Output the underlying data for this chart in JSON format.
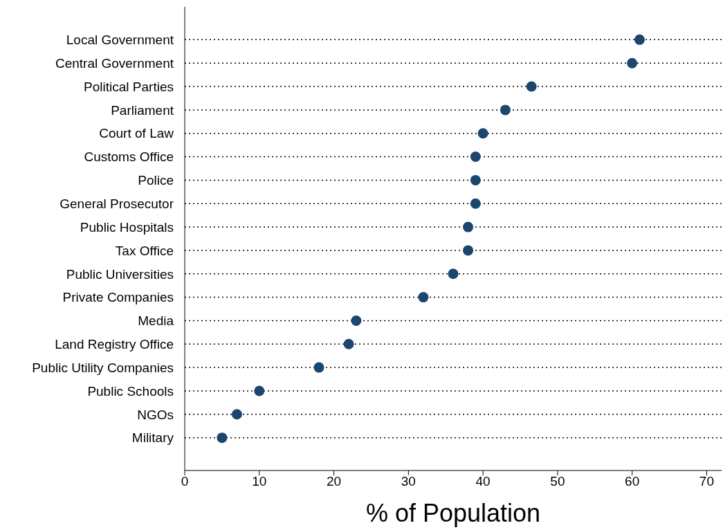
{
  "chart_data": {
    "type": "scatter",
    "orientation": "horizontal",
    "xlabel": "% of Population",
    "categories": [
      "Local Government",
      "Central Government",
      "Political Parties",
      "Parliament",
      "Court of Law",
      "Customs Office",
      "Police",
      "General Prosecutor",
      "Public Hospitals",
      "Tax Office",
      "Public Universities",
      "Private Companies",
      "Media",
      "Land Registry Office",
      "Public Utility Companies",
      "Public Schools",
      "NGOs",
      "Military"
    ],
    "values": [
      61,
      60,
      46.5,
      43,
      40,
      39,
      39,
      39,
      38,
      38,
      36,
      32,
      23,
      22,
      18,
      10,
      7,
      5
    ],
    "color": "#1c4670",
    "marker": "circle",
    "grid": "y",
    "xlim": [
      0,
      72
    ],
    "xticks": [
      0,
      10,
      20,
      30,
      40,
      50,
      60,
      70
    ]
  }
}
